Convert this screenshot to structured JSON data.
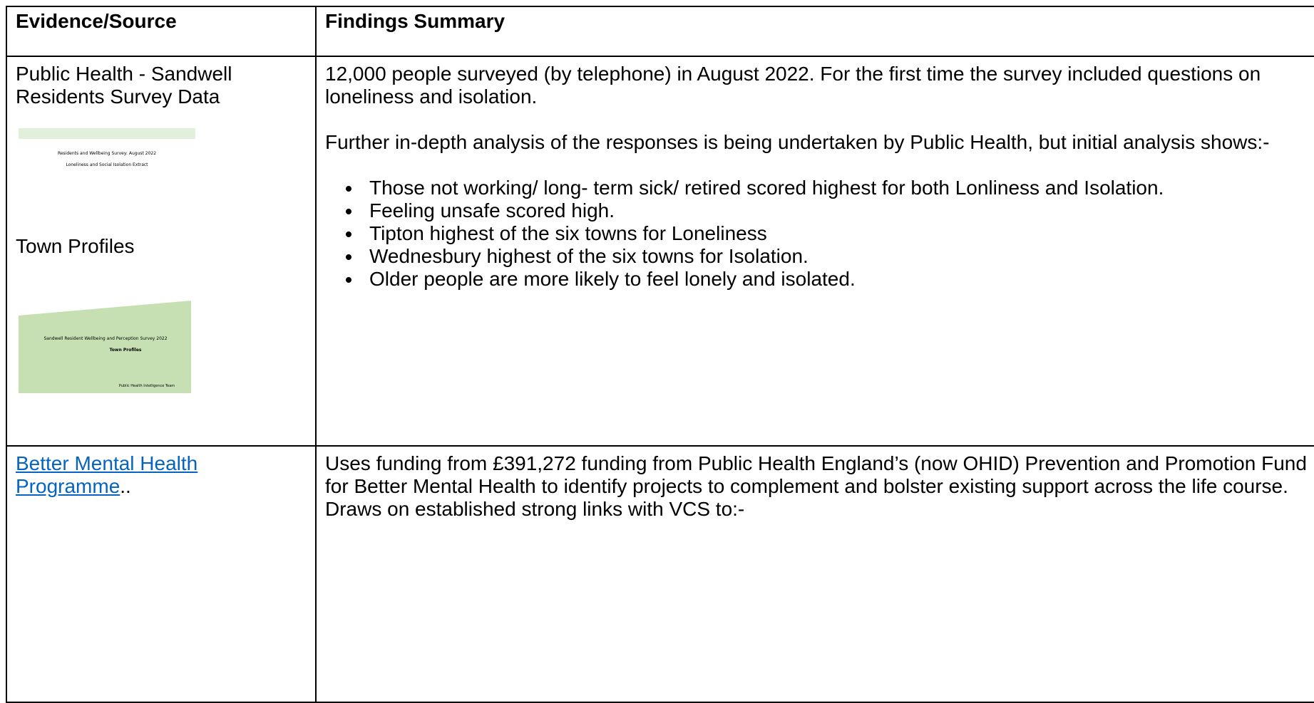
{
  "table": {
    "header": [
      "Evidence/Source",
      "Findings Summary"
    ],
    "rows": [
      {
        "source": "Public Health - Sandwell Residents Survey Data",
        "thumbnail_1": [
          "Residents and Wellbeing Survey: August 2022",
          "Loneliness and Social Isolation Extract"
        ],
        "source_2": "Town Profiles",
        "thumbnail_2": [
          "Sandwell Resident Wellbeing and Perception Survey 2022",
          "Town Profiles",
          "Public Health Intelligence Team"
        ],
        "findings": {
          "paragraphs": [
            "12,000 people surveyed (by telephone) in August 2022. For the first time the survey included questions on loneliness and isolation.",
            "Further in-depth analysis of the responses is being undertaken by Public Health, but initial analysis shows:-"
          ],
          "bullets": [
            "Those not working/ long- term sick/ retired scored highest for both Lonliness and Isolation.",
            "Feeling unsafe scored high.",
            "Tipton highest of the six towns for Loneliness",
            "Wednesbury highest of the six towns for Isolation.",
            "Older people are more likely to feel lonely and isolated."
          ]
        }
      },
      {
        "source_link": "Better Mental Health Programme",
        "source_suffix": "..",
        "findings": {
          "paragraphs": [
            "Uses funding from £391,272 funding from Public Health England’s (now OHID) Prevention and Promotion Fund for Better Mental Health to identify projects to complement and bolster existing support across the life course. Draws on established strong links with VCS to:-"
          ]
        }
      }
    ]
  }
}
